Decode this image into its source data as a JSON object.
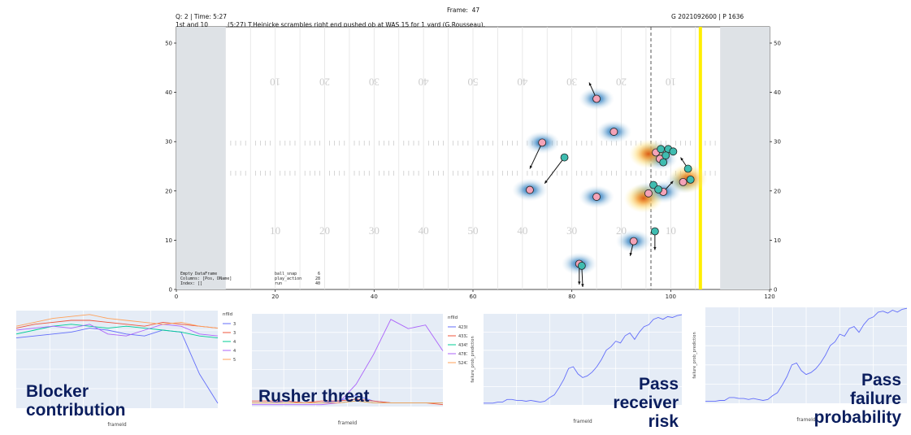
{
  "header": {
    "frame_label": "Frame:  47",
    "quarter_time": "Q: 2 | Time: 5:27",
    "down_distance": "1st and 10",
    "play_description": "(5:27) T.Heinicke scrambles right end pushed ob at WAS 15 for 1 yard (G.Rousseau).",
    "game_play_id": "G 2021092600 | P 1636"
  },
  "field_info": {
    "line1": "Empty DataFrame",
    "line2": "Columns: [Pos, DName]",
    "line3": "Index: []",
    "stats": [
      {
        "label": "ball_snap",
        "value": "6"
      },
      {
        "label": "play_action",
        "value": "28"
      },
      {
        "label": "run",
        "value": "40"
      }
    ]
  },
  "field_labels": {
    "top_yard_numbers": [
      "10",
      "20",
      "30",
      "40",
      "50",
      "40",
      "30",
      "20",
      "10"
    ],
    "bottom_yard_numbers": [
      "10",
      "20",
      "30",
      "40",
      "50",
      "40",
      "30",
      "20",
      "10"
    ]
  },
  "colors": {
    "endzone": "#dee2e6",
    "first_down_line": "#ffee00",
    "line_of_scrimmage": "#555555",
    "defense_marker": "#f4a3b8",
    "offense_marker": "#3fbcb0",
    "panel_bg": "#e5ecf6",
    "label_text": "#0b1e5e"
  },
  "chart_data": [
    {
      "type": "scatter",
      "xlim": [
        0,
        120
      ],
      "ylim": [
        0,
        53.3
      ],
      "x_ticks": [
        "0",
        "20",
        "40",
        "60",
        "80",
        "100",
        "120"
      ],
      "y_ticks": [
        "0",
        "10",
        "20",
        "30",
        "40",
        "50"
      ],
      "line_of_scrimmage_x": 96,
      "first_down_x": 106,
      "defense": {
        "name": "defense",
        "points": [
          {
            "x": 85,
            "y": 38.7
          },
          {
            "x": 88.5,
            "y": 32
          },
          {
            "x": 74,
            "y": 29.8
          },
          {
            "x": 71.5,
            "y": 20.2
          },
          {
            "x": 85,
            "y": 18.8
          },
          {
            "x": 92.5,
            "y": 9.8
          },
          {
            "x": 81.5,
            "y": 5.2
          },
          {
            "x": 97,
            "y": 27.8
          },
          {
            "x": 97.8,
            "y": 26.5
          },
          {
            "x": 95.5,
            "y": 19.5
          },
          {
            "x": 102.5,
            "y": 21.8
          },
          {
            "x": 98.5,
            "y": 19.8
          }
        ]
      },
      "offense": {
        "name": "offense",
        "points": [
          {
            "x": 78.5,
            "y": 26.8
          },
          {
            "x": 98,
            "y": 28.5
          },
          {
            "x": 99.5,
            "y": 28.5
          },
          {
            "x": 100.5,
            "y": 28
          },
          {
            "x": 99,
            "y": 27.2
          },
          {
            "x": 98.5,
            "y": 25.8
          },
          {
            "x": 96.5,
            "y": 21.2
          },
          {
            "x": 97.5,
            "y": 20.3
          },
          {
            "x": 103.5,
            "y": 24.5
          },
          {
            "x": 104,
            "y": 22.3
          },
          {
            "x": 96.8,
            "y": 11.8
          },
          {
            "x": 82,
            "y": 4.8
          }
        ]
      }
    },
    {
      "type": "line",
      "title": "Blocker contribution",
      "xlabel": "frameId",
      "ylabel": "",
      "ylim": [
        0,
        1
      ],
      "legend_title": "nflId",
      "x": [
        1,
        2,
        3,
        4,
        5,
        6,
        7,
        8,
        9,
        10,
        11,
        12
      ],
      "series": [
        {
          "name": "38673",
          "color": "#636efa",
          "values": [
            0.72,
            0.74,
            0.76,
            0.78,
            0.82,
            0.8,
            0.76,
            0.74,
            0.8,
            0.78,
            0.35,
            0.05
          ]
        },
        {
          "name": "38888",
          "color": "#ef553b",
          "values": [
            0.82,
            0.86,
            0.88,
            0.9,
            0.9,
            0.88,
            0.86,
            0.84,
            0.88,
            0.86,
            0.84,
            0.82
          ]
        },
        {
          "name": "42500",
          "color": "#00cc96",
          "values": [
            0.76,
            0.8,
            0.84,
            0.86,
            0.84,
            0.82,
            0.84,
            0.82,
            0.8,
            0.78,
            0.74,
            0.72
          ]
        },
        {
          "name": "44849",
          "color": "#ab63fa",
          "values": [
            0.8,
            0.82,
            0.84,
            0.82,
            0.86,
            0.76,
            0.74,
            0.8,
            0.86,
            0.84,
            0.76,
            0.74
          ]
        },
        {
          "name": "52480",
          "color": "#ffa15a",
          "values": [
            0.84,
            0.88,
            0.92,
            0.94,
            0.96,
            0.92,
            0.9,
            0.88,
            0.86,
            0.88,
            0.84,
            0.82
          ]
        }
      ]
    },
    {
      "type": "line",
      "title": "Rusher threat",
      "xlabel": "frameId",
      "ylabel": "",
      "ylim": [
        0,
        0.5
      ],
      "legend_title": "nflId",
      "x": [
        1,
        2,
        3,
        4,
        5,
        6,
        7,
        8,
        9,
        10,
        11,
        12
      ],
      "series": [
        {
          "name": "42381",
          "color": "#636efa",
          "values": [
            0.02,
            0.02,
            0.03,
            0.02,
            0.02,
            0.03,
            0.06,
            0.03,
            0.02,
            0.02,
            0.02,
            0.02
          ]
        },
        {
          "name": "43326",
          "color": "#ef553b",
          "values": [
            0.03,
            0.03,
            0.03,
            0.02,
            0.03,
            0.03,
            0.04,
            0.03,
            0.02,
            0.02,
            0.02,
            0.01
          ]
        },
        {
          "name": "43451",
          "color": "#00cc96",
          "values": [
            0.02,
            0.02,
            0.02,
            0.02,
            0.02,
            0.02,
            0.03,
            0.02,
            0.02,
            0.02,
            0.02,
            0.02
          ]
        },
        {
          "name": "47876",
          "color": "#ab63fa",
          "values": [
            0.01,
            0.01,
            0.01,
            0.01,
            0.01,
            0.02,
            0.12,
            0.28,
            0.47,
            0.42,
            0.44,
            0.3
          ]
        },
        {
          "name": "52411",
          "color": "#ffa15a",
          "values": [
            0.02,
            0.02,
            0.02,
            0.02,
            0.02,
            0.02,
            0.03,
            0.02,
            0.02,
            0.02,
            0.02,
            0.02
          ]
        }
      ]
    },
    {
      "type": "line",
      "title": "Pass receiver risk",
      "xlabel": "frameId",
      "ylabel": "failure_prob_prediction",
      "ylim": [
        0,
        1
      ],
      "x": [
        1,
        2,
        3,
        4,
        5,
        6,
        7,
        8,
        9,
        10,
        11,
        12,
        13,
        14,
        15,
        16,
        17,
        18,
        19,
        20,
        21,
        22,
        23,
        24,
        25,
        26,
        27,
        28,
        29,
        30,
        31,
        32,
        33,
        34,
        35,
        36,
        37,
        38,
        39,
        40,
        41,
        42,
        43
      ],
      "series": [
        {
          "name": "",
          "color": "#636efa",
          "values": [
            0.02,
            0.02,
            0.02,
            0.03,
            0.03,
            0.06,
            0.06,
            0.05,
            0.05,
            0.04,
            0.05,
            0.04,
            0.03,
            0.04,
            0.08,
            0.11,
            0.19,
            0.28,
            0.4,
            0.42,
            0.34,
            0.3,
            0.32,
            0.36,
            0.42,
            0.5,
            0.6,
            0.64,
            0.7,
            0.68,
            0.76,
            0.79,
            0.72,
            0.8,
            0.86,
            0.88,
            0.94,
            0.96,
            0.94,
            0.97,
            0.96,
            0.98,
            0.99
          ]
        }
      ]
    },
    {
      "type": "line",
      "title": "Pass failure probability",
      "xlabel": "frameId",
      "ylabel": "failure_prob_prediction",
      "ylim": [
        0,
        1
      ],
      "x": [
        1,
        2,
        3,
        4,
        5,
        6,
        7,
        8,
        9,
        10,
        11,
        12,
        13,
        14,
        15,
        16,
        17,
        18,
        19,
        20,
        21,
        22,
        23,
        24,
        25,
        26,
        27,
        28,
        29,
        30,
        31,
        32,
        33,
        34,
        35,
        36,
        37,
        38,
        39,
        40,
        41,
        42,
        43
      ],
      "series": [
        {
          "name": "",
          "color": "#636efa",
          "values": [
            0.02,
            0.02,
            0.02,
            0.03,
            0.03,
            0.06,
            0.06,
            0.05,
            0.05,
            0.04,
            0.05,
            0.04,
            0.03,
            0.04,
            0.08,
            0.11,
            0.19,
            0.28,
            0.4,
            0.42,
            0.34,
            0.3,
            0.32,
            0.36,
            0.42,
            0.5,
            0.6,
            0.64,
            0.72,
            0.7,
            0.78,
            0.8,
            0.74,
            0.82,
            0.88,
            0.9,
            0.95,
            0.96,
            0.94,
            0.97,
            0.95,
            0.98,
            0.99
          ]
        }
      ]
    }
  ],
  "panel_labels": {
    "blocker": [
      "Blocker",
      "contribution"
    ],
    "rusher": [
      "Rusher threat"
    ],
    "receiver": [
      "Pass",
      "receiver",
      "risk"
    ],
    "failure": [
      "Pass",
      "failure",
      "probability"
    ]
  }
}
